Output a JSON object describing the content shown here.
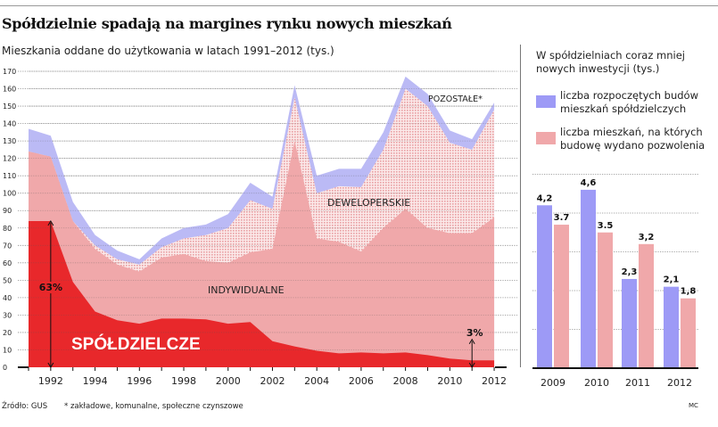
{
  "header": {
    "title": "Spółdzielnie spadają na margines rynku nowych mieszkań",
    "subtitle": "Mieszkania oddane do użytkowania w latach 1991–2012 (tys.)"
  },
  "colors": {
    "spoldzielcze": "#e8282b",
    "indywidualne": "#f0a8aa",
    "deweloperskie": "#f3c4c5",
    "pozostale": "#bbbaf5",
    "bar_blue": "#9d9af6",
    "bar_pink": "#f0a8aa"
  },
  "chart_data": [
    {
      "type": "area",
      "stacked": true,
      "title": "Mieszkania oddane do użytkowania w latach 1991–2012 (tys.)",
      "x": [
        1991,
        1992,
        1993,
        1994,
        1995,
        1996,
        1997,
        1998,
        1999,
        2000,
        2001,
        2002,
        2003,
        2004,
        2005,
        2006,
        2007,
        2008,
        2009,
        2010,
        2011,
        2012
      ],
      "x_tick_labels": [
        "1992",
        "1994",
        "1996",
        "1998",
        "2000",
        "2002",
        "2004",
        "2006",
        "2008",
        "2010",
        "2012"
      ],
      "y_ticks": [
        "0",
        "10",
        "20",
        "30",
        "40",
        "50",
        "60",
        "70",
        "80",
        "90",
        "100",
        "110",
        "120",
        "130",
        "140",
        "150",
        "160",
        "170"
      ],
      "ylim": [
        0,
        170
      ],
      "grid": true,
      "series": [
        {
          "name": "SPÓŁDZIELCZE",
          "values": [
            84,
            84,
            49,
            32,
            27,
            25,
            28,
            28,
            27.5,
            25,
            26,
            15,
            12,
            9.5,
            8,
            8.5,
            8,
            8.5,
            7,
            5,
            4,
            4
          ]
        },
        {
          "name": "INDYWIDUALNE",
          "values": [
            40,
            37,
            35,
            36,
            32,
            30,
            35,
            37,
            33.5,
            35,
            40,
            53,
            118,
            64.5,
            64,
            58,
            72,
            82.5,
            73,
            72,
            73,
            82
          ]
        },
        {
          "name": "DEWELOPERSKIE",
          "values": [
            0,
            0,
            0,
            2,
            3,
            4,
            6,
            9,
            15,
            20,
            30,
            23,
            25,
            26,
            32,
            37,
            45,
            69,
            70,
            52,
            48,
            62
          ]
        },
        {
          "name": "POZOSTAŁE*",
          "values": [
            13,
            12,
            11,
            6,
            5,
            3,
            5,
            6,
            6,
            8,
            10,
            7,
            7,
            10,
            10,
            10.5,
            10,
            7,
            7,
            7,
            6,
            4
          ]
        }
      ],
      "annotations": [
        {
          "year": 1992,
          "text": "63%"
        },
        {
          "year": 2011,
          "text": "3%"
        }
      ]
    },
    {
      "type": "bar",
      "title": "W spółdzielniach coraz mniej nowych inwestycji (tys.)",
      "categories": [
        "2009",
        "2010",
        "2011",
        "2012"
      ],
      "ylim": [
        0,
        5
      ],
      "grid": true,
      "series": [
        {
          "name": "liczba rozpoczętych budów mieszkań spółdzielczych",
          "values": [
            4.2,
            4.6,
            2.3,
            2.1
          ],
          "labels": [
            "4,2",
            "4,6",
            "2,3",
            "2,1"
          ]
        },
        {
          "name": "liczba mieszkań, na których budowę wydano pozwolenia",
          "values": [
            3.7,
            3.5,
            3.2,
            1.8
          ],
          "labels": [
            "3.7",
            "3.5",
            "3,2",
            "1,8"
          ]
        }
      ]
    }
  ],
  "footer": {
    "source": "Źródło: GUS",
    "note": "* zakładowe, komunalne, społeczne czynszowe",
    "credit": "MC"
  }
}
